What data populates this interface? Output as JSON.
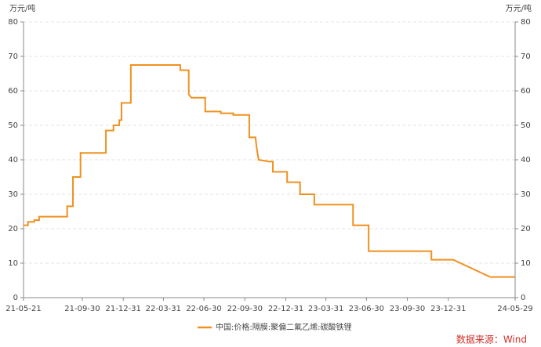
{
  "chart_data": {
    "type": "line",
    "ylabel": "万元/吨",
    "y2label": "万元/吨",
    "source": "数据来源：Wind",
    "xlim": [
      "21-05-21",
      "24-05-29"
    ],
    "xticks": [
      "21-05-21",
      "21-09-30",
      "21-12-31",
      "22-03-31",
      "22-06-30",
      "22-09-30",
      "22-12-31",
      "23-03-31",
      "23-06-30",
      "23-09-30",
      "23-12-31",
      "24-05-29"
    ],
    "ylim": [
      0,
      80
    ],
    "yticks": [
      0,
      10,
      20,
      30,
      40,
      50,
      60,
      70,
      80
    ],
    "y2lim": [
      0,
      80
    ],
    "y2ticks": [
      0,
      10,
      20,
      30,
      40,
      50,
      60,
      70,
      80
    ],
    "grid": true,
    "legend": "bottom",
    "x": [
      "21-05-21",
      "21-05-31",
      "21-05-31",
      "21-06-14",
      "21-06-14",
      "21-06-25",
      "21-06-25",
      "21-08-27",
      "21-08-27",
      "21-09-09",
      "21-09-09",
      "21-09-26",
      "21-09-26",
      "21-11-22",
      "21-11-22",
      "21-12-09",
      "21-12-09",
      "21-12-22",
      "21-12-22",
      "21-12-27",
      "21-12-27",
      "22-01-17",
      "22-01-17",
      "22-05-08",
      "22-05-08",
      "22-05-27",
      "22-05-27",
      "22-06-02",
      "22-07-03",
      "22-07-03",
      "22-08-07",
      "22-08-07",
      "22-09-04",
      "22-09-04",
      "22-10-10",
      "22-10-10",
      "22-10-24",
      "22-10-26",
      "22-10-31",
      "22-11-23",
      "22-12-02",
      "22-12-02",
      "23-01-03",
      "23-01-03",
      "23-02-01",
      "23-02-01",
      "23-03-05",
      "23-03-05",
      "23-05-31",
      "23-05-31",
      "23-07-05",
      "23-07-05",
      "23-11-23",
      "23-11-23",
      "24-01-11",
      "24-04-03",
      "24-05-29"
    ],
    "series": [
      {
        "name": "中国:价格:隔膜:聚偏二氟乙烯:碳酸铁锂",
        "color": "#f0901e",
        "values": [
          21,
          21,
          22,
          22,
          22.5,
          22.5,
          23.5,
          23.5,
          26.5,
          26.5,
          35,
          35,
          42,
          42,
          48.5,
          48.5,
          50,
          50,
          51.5,
          51.5,
          56.5,
          56.5,
          67.5,
          67.5,
          66,
          66,
          59,
          58,
          58,
          54,
          54,
          53.5,
          53.5,
          53,
          53,
          46.5,
          46.5,
          44,
          40,
          39.5,
          39.5,
          36.5,
          36.5,
          33.5,
          33.5,
          30,
          30,
          27,
          27,
          21,
          21,
          13.5,
          13.5,
          11,
          11,
          6,
          6
        ]
      }
    ]
  }
}
